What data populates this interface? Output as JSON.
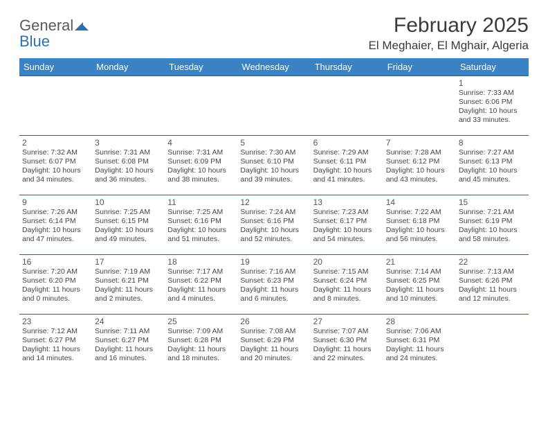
{
  "style": {
    "header_bg": "#3b82c4",
    "header_text": "#ffffff",
    "row_border": "#2f5f8f",
    "logo_gray": "#5a5a5a",
    "logo_blue": "#2f6fb0",
    "title_color": "#3a3a3a"
  },
  "logo": {
    "word1": "General",
    "word2": "Blue"
  },
  "title": "February 2025",
  "location": "El Meghaier, El Mghair, Algeria",
  "day_headers": [
    "Sunday",
    "Monday",
    "Tuesday",
    "Wednesday",
    "Thursday",
    "Friday",
    "Saturday"
  ],
  "weeks": [
    [
      null,
      null,
      null,
      null,
      null,
      null,
      {
        "n": "1",
        "sr": "7:33 AM",
        "ss": "6:06 PM",
        "dl": "10 hours and 33 minutes."
      }
    ],
    [
      {
        "n": "2",
        "sr": "7:32 AM",
        "ss": "6:07 PM",
        "dl": "10 hours and 34 minutes."
      },
      {
        "n": "3",
        "sr": "7:31 AM",
        "ss": "6:08 PM",
        "dl": "10 hours and 36 minutes."
      },
      {
        "n": "4",
        "sr": "7:31 AM",
        "ss": "6:09 PM",
        "dl": "10 hours and 38 minutes."
      },
      {
        "n": "5",
        "sr": "7:30 AM",
        "ss": "6:10 PM",
        "dl": "10 hours and 39 minutes."
      },
      {
        "n": "6",
        "sr": "7:29 AM",
        "ss": "6:11 PM",
        "dl": "10 hours and 41 minutes."
      },
      {
        "n": "7",
        "sr": "7:28 AM",
        "ss": "6:12 PM",
        "dl": "10 hours and 43 minutes."
      },
      {
        "n": "8",
        "sr": "7:27 AM",
        "ss": "6:13 PM",
        "dl": "10 hours and 45 minutes."
      }
    ],
    [
      {
        "n": "9",
        "sr": "7:26 AM",
        "ss": "6:14 PM",
        "dl": "10 hours and 47 minutes."
      },
      {
        "n": "10",
        "sr": "7:25 AM",
        "ss": "6:15 PM",
        "dl": "10 hours and 49 minutes."
      },
      {
        "n": "11",
        "sr": "7:25 AM",
        "ss": "6:16 PM",
        "dl": "10 hours and 51 minutes."
      },
      {
        "n": "12",
        "sr": "7:24 AM",
        "ss": "6:16 PM",
        "dl": "10 hours and 52 minutes."
      },
      {
        "n": "13",
        "sr": "7:23 AM",
        "ss": "6:17 PM",
        "dl": "10 hours and 54 minutes."
      },
      {
        "n": "14",
        "sr": "7:22 AM",
        "ss": "6:18 PM",
        "dl": "10 hours and 56 minutes."
      },
      {
        "n": "15",
        "sr": "7:21 AM",
        "ss": "6:19 PM",
        "dl": "10 hours and 58 minutes."
      }
    ],
    [
      {
        "n": "16",
        "sr": "7:20 AM",
        "ss": "6:20 PM",
        "dl": "11 hours and 0 minutes."
      },
      {
        "n": "17",
        "sr": "7:19 AM",
        "ss": "6:21 PM",
        "dl": "11 hours and 2 minutes."
      },
      {
        "n": "18",
        "sr": "7:17 AM",
        "ss": "6:22 PM",
        "dl": "11 hours and 4 minutes."
      },
      {
        "n": "19",
        "sr": "7:16 AM",
        "ss": "6:23 PM",
        "dl": "11 hours and 6 minutes."
      },
      {
        "n": "20",
        "sr": "7:15 AM",
        "ss": "6:24 PM",
        "dl": "11 hours and 8 minutes."
      },
      {
        "n": "21",
        "sr": "7:14 AM",
        "ss": "6:25 PM",
        "dl": "11 hours and 10 minutes."
      },
      {
        "n": "22",
        "sr": "7:13 AM",
        "ss": "6:26 PM",
        "dl": "11 hours and 12 minutes."
      }
    ],
    [
      {
        "n": "23",
        "sr": "7:12 AM",
        "ss": "6:27 PM",
        "dl": "11 hours and 14 minutes."
      },
      {
        "n": "24",
        "sr": "7:11 AM",
        "ss": "6:27 PM",
        "dl": "11 hours and 16 minutes."
      },
      {
        "n": "25",
        "sr": "7:09 AM",
        "ss": "6:28 PM",
        "dl": "11 hours and 18 minutes."
      },
      {
        "n": "26",
        "sr": "7:08 AM",
        "ss": "6:29 PM",
        "dl": "11 hours and 20 minutes."
      },
      {
        "n": "27",
        "sr": "7:07 AM",
        "ss": "6:30 PM",
        "dl": "11 hours and 22 minutes."
      },
      {
        "n": "28",
        "sr": "7:06 AM",
        "ss": "6:31 PM",
        "dl": "11 hours and 24 minutes."
      },
      null
    ]
  ],
  "labels": {
    "sunrise": "Sunrise:",
    "sunset": "Sunset:",
    "daylight": "Daylight:"
  }
}
